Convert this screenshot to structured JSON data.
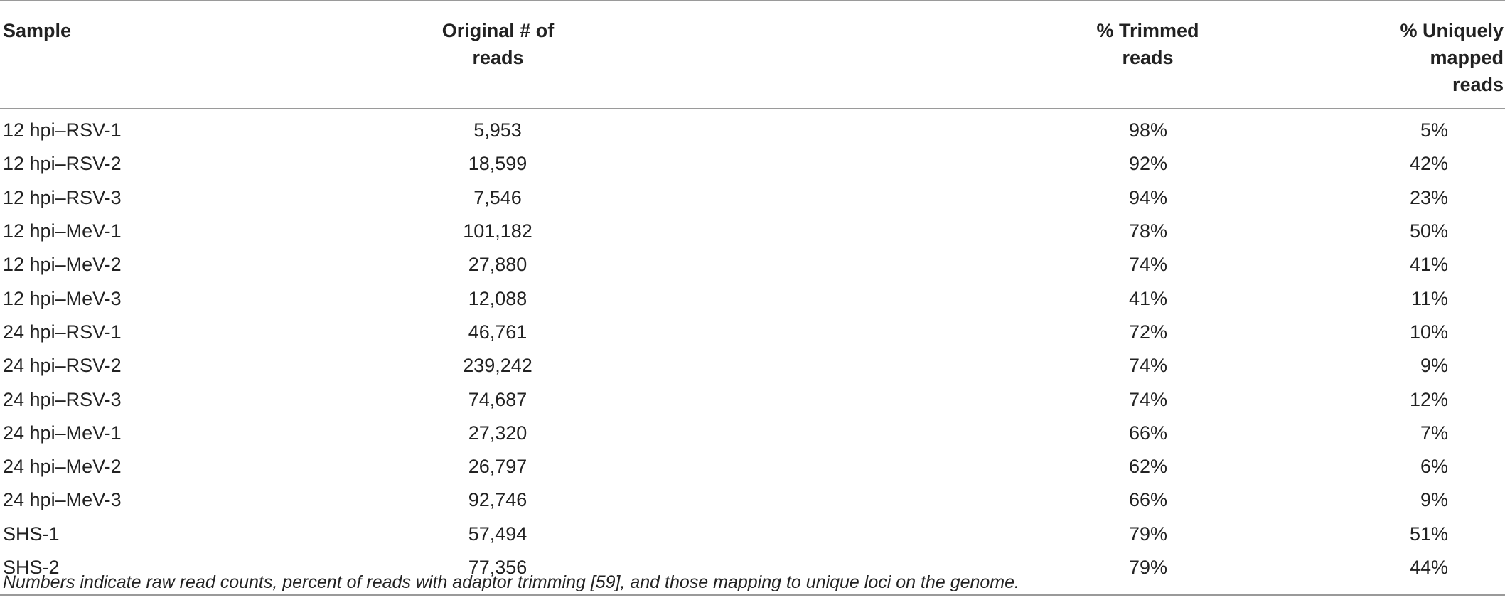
{
  "table": {
    "headers": {
      "sample": "Sample",
      "original_line1": "Original # of",
      "original_line2": "reads",
      "trimmed_line1": "% Trimmed",
      "trimmed_line2": "reads",
      "unique_line1": "% Uniquely",
      "unique_line2": "mapped reads"
    },
    "rows": [
      {
        "sample": "12 hpi–RSV-1",
        "original": "5,953",
        "trimmed": "98%",
        "unique": "5%"
      },
      {
        "sample": "12 hpi–RSV-2",
        "original": "18,599",
        "trimmed": "92%",
        "unique": "42%"
      },
      {
        "sample": "12 hpi–RSV-3",
        "original": "7,546",
        "trimmed": "94%",
        "unique": "23%"
      },
      {
        "sample": "12 hpi–MeV-1",
        "original": "101,182",
        "trimmed": "78%",
        "unique": "50%"
      },
      {
        "sample": "12 hpi–MeV-2",
        "original": "27,880",
        "trimmed": "74%",
        "unique": "41%"
      },
      {
        "sample": "12 hpi–MeV-3",
        "original": "12,088",
        "trimmed": "41%",
        "unique": "11%"
      },
      {
        "sample": "24 hpi–RSV-1",
        "original": "46,761",
        "trimmed": "72%",
        "unique": "10%"
      },
      {
        "sample": "24 hpi–RSV-2",
        "original": "239,242",
        "trimmed": "74%",
        "unique": "9%"
      },
      {
        "sample": "24 hpi–RSV-3",
        "original": "74,687",
        "trimmed": "74%",
        "unique": "12%"
      },
      {
        "sample": "24 hpi–MeV-1",
        "original": "27,320",
        "trimmed": "66%",
        "unique": "7%"
      },
      {
        "sample": "24 hpi–MeV-2",
        "original": "26,797",
        "trimmed": "62%",
        "unique": "6%"
      },
      {
        "sample": "24 hpi–MeV-3",
        "original": "92,746",
        "trimmed": "66%",
        "unique": "9%"
      },
      {
        "sample": "SHS-1",
        "original": "57,494",
        "trimmed": "79%",
        "unique": "51%"
      },
      {
        "sample": "SHS-2",
        "original": "77,356",
        "trimmed": "79%",
        "unique": "44%"
      }
    ]
  },
  "footnote": "Numbers indicate raw read counts, percent of reads with adaptor trimming [59], and those mapping to unique loci on the genome."
}
